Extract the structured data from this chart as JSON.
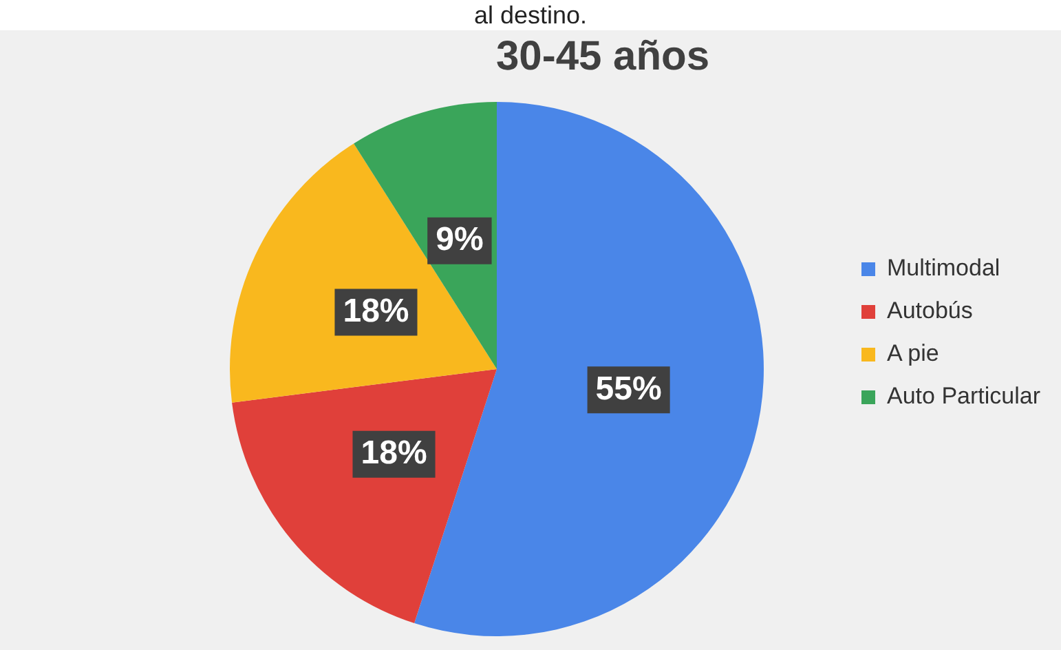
{
  "chart_data": {
    "type": "pie",
    "title": "30-45 años",
    "annotations": [
      "al destino."
    ],
    "categories": [
      "Multimodal",
      "Autobús",
      "A pie",
      "Auto Particular"
    ],
    "values": [
      55,
      18,
      18,
      9
    ],
    "colors": [
      "#4a86e8",
      "#e0403a",
      "#f9b81e",
      "#3aa55a"
    ],
    "value_labels": [
      "55%",
      "18%",
      "18%",
      "9%"
    ],
    "legend": "right"
  }
}
